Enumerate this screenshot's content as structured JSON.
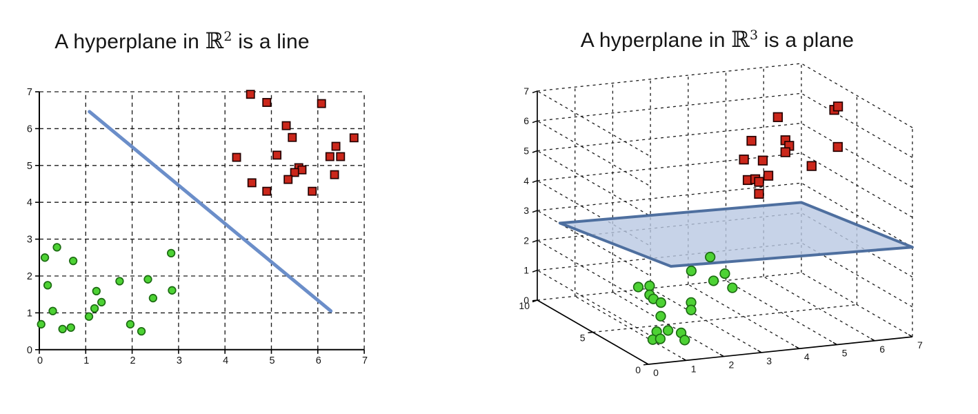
{
  "titles": {
    "left": {
      "prefix": "A hyperplane in ",
      "symbol": "ℝ",
      "sup": "2",
      "suffix": " is a line"
    },
    "right": {
      "prefix": "A hyperplane in ",
      "symbol": "ℝ",
      "sup": "3",
      "suffix": " is a plane"
    }
  },
  "chart_data": [
    {
      "type": "scatter",
      "title": "A hyperplane in ℝ² is a line",
      "xlabel": "",
      "ylabel": "",
      "xlim": [
        0,
        7
      ],
      "ylim": [
        0,
        7
      ],
      "xticks": [
        0,
        1,
        2,
        3,
        4,
        5,
        6,
        7
      ],
      "yticks": [
        0,
        1,
        2,
        3,
        4,
        5,
        6,
        7
      ],
      "grid": true,
      "grid_style": "dashed",
      "series": [
        {
          "name": "green-circles-class",
          "marker": "circle",
          "fill": "#4dd234",
          "edge": "#1c6b12",
          "points": [
            [
              0.04,
              0.69
            ],
            [
              0.12,
              2.5
            ],
            [
              0.18,
              1.75
            ],
            [
              0.29,
              1.05
            ],
            [
              0.38,
              2.78
            ],
            [
              0.5,
              0.56
            ],
            [
              0.68,
              0.6
            ],
            [
              0.73,
              2.41
            ],
            [
              1.07,
              0.9
            ],
            [
              1.19,
              1.12
            ],
            [
              1.23,
              1.59
            ],
            [
              1.34,
              1.29
            ],
            [
              1.73,
              1.86
            ],
            [
              1.96,
              0.69
            ],
            [
              2.2,
              0.5
            ],
            [
              2.34,
              1.91
            ],
            [
              2.45,
              1.4
            ],
            [
              2.84,
              2.62
            ],
            [
              2.86,
              1.61
            ]
          ]
        },
        {
          "name": "red-squares-class",
          "marker": "square",
          "fill": "#cb271b",
          "edge": "#240000",
          "points": [
            [
              4.25,
              5.22
            ],
            [
              4.55,
              6.93
            ],
            [
              4.9,
              6.71
            ],
            [
              6.08,
              6.68
            ],
            [
              5.32,
              6.08
            ],
            [
              5.45,
              5.76
            ],
            [
              6.78,
              5.75
            ],
            [
              5.12,
              5.28
            ],
            [
              6.39,
              5.52
            ],
            [
              6.26,
              5.24
            ],
            [
              6.49,
              5.24
            ],
            [
              5.59,
              4.94
            ],
            [
              5.66,
              4.88
            ],
            [
              5.5,
              4.81
            ],
            [
              5.36,
              4.62
            ],
            [
              4.58,
              4.53
            ],
            [
              4.9,
              4.3
            ],
            [
              5.88,
              4.3
            ],
            [
              6.36,
              4.75
            ]
          ]
        }
      ],
      "hyperplane": {
        "shape": "line",
        "from": [
          1.08,
          6.46
        ],
        "to": [
          6.28,
          1.05
        ],
        "color": "#6b8ec9",
        "width": 5
      }
    },
    {
      "type": "scatter3d",
      "title": "A hyperplane in ℝ³ is a plane",
      "xlim": [
        0,
        7
      ],
      "ylim": [
        0,
        10
      ],
      "zlim": [
        0,
        7
      ],
      "xticks": [
        0,
        1,
        2,
        3,
        4,
        5,
        6,
        7
      ],
      "yticks": [
        0,
        5,
        10
      ],
      "zticks": [
        0,
        1,
        2,
        3,
        4,
        5,
        6,
        7
      ],
      "grid": true,
      "grid_style": "dashed",
      "series": [
        {
          "name": "green-circles-class",
          "marker": "circle",
          "fill": "#4dd234",
          "edge": "#1c6b12",
          "points": [
            [
              3.7,
              7,
              1.6
            ],
            [
              3.2,
              7,
              1.2
            ],
            [
              3.2,
              5,
              1.3
            ],
            [
              3.5,
              5,
              1.5
            ],
            [
              3.7,
              5,
              1.0
            ],
            [
              1.5,
              6,
              1.1
            ],
            [
              1.8,
              6,
              1.1
            ],
            [
              1.8,
              6,
              0.8
            ],
            [
              1.9,
              6,
              0.65
            ],
            [
              2.1,
              6,
              0.5
            ],
            [
              1.8,
              5,
              0.3
            ],
            [
              2.9,
              6,
              0.4
            ],
            [
              2.9,
              6,
              0.15
            ],
            [
              1.7,
              4,
              0.05
            ],
            [
              1.4,
              4,
              0.05
            ],
            [
              1.9,
              3.5,
              0.05
            ],
            [
              1.0,
              3,
              0.05
            ],
            [
              1.2,
              3,
              0.05
            ],
            [
              1.7,
              2.5,
              0.05
            ]
          ]
        },
        {
          "name": "red-squares-class",
          "marker": "square",
          "fill": "#cb271b",
          "edge": "#240000",
          "points": [
            [
              6.4,
              5,
              6.6
            ],
            [
              6.5,
              5,
              6.7
            ],
            [
              5.2,
              6,
              6.3
            ],
            [
              4.5,
              6,
              5.6
            ],
            [
              5.4,
              6,
              5.5
            ],
            [
              5.5,
              6,
              5.3
            ],
            [
              5.4,
              6,
              5.1
            ],
            [
              4.3,
              6,
              5.0
            ],
            [
              4.8,
              6,
              4.9
            ],
            [
              6.2,
              4,
              5.6
            ],
            [
              5.8,
              5,
              4.8
            ],
            [
              4.8,
              5.5,
              4.5
            ],
            [
              4.4,
              6,
              4.3
            ],
            [
              4.6,
              6,
              4.3
            ],
            [
              4.7,
              6,
              4.2
            ],
            [
              4.7,
              6,
              3.8
            ]
          ]
        }
      ],
      "hyperplane": {
        "shape": "plane",
        "corners": [
          [
            0.6,
            0,
            3.2
          ],
          [
            7,
            0,
            3.0
          ],
          [
            7,
            10,
            2.35
          ],
          [
            0.6,
            10,
            2.5
          ]
        ],
        "fill": "#b9c8e2",
        "fill_opacity": 0.8,
        "edge": "#4e6f9f",
        "edge_width": 4
      }
    }
  ],
  "style": {
    "grid_color": "#1a1a1a",
    "axis_color": "#000000",
    "tick_label_color": "#141414"
  }
}
